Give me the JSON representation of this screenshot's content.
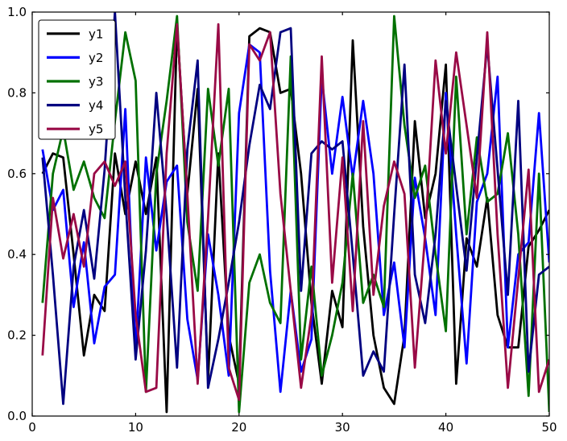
{
  "chart_data": {
    "type": "line",
    "title": "",
    "xlabel": "",
    "ylabel": "",
    "xlim": [
      0,
      50
    ],
    "ylim": [
      0.0,
      1.0
    ],
    "x_ticks": [
      0,
      10,
      20,
      30,
      40,
      50
    ],
    "y_ticks": [
      0.0,
      0.2,
      0.4,
      0.6,
      0.8,
      1.0
    ],
    "grid": false,
    "legend_position": "upper-left",
    "x_start": 1,
    "series": [
      {
        "name": "y1",
        "color": "#000000",
        "values": [
          0.6,
          0.65,
          0.64,
          0.4,
          0.15,
          0.3,
          0.26,
          0.65,
          0.5,
          0.63,
          0.5,
          0.64,
          0.01,
          0.97,
          0.55,
          0.81,
          0.09,
          0.65,
          0.2,
          0.08,
          0.94,
          0.96,
          0.95,
          0.8,
          0.81,
          0.6,
          0.28,
          0.08,
          0.31,
          0.22,
          0.93,
          0.47,
          0.2,
          0.07,
          0.03,
          0.2,
          0.73,
          0.49,
          0.6,
          0.87,
          0.08,
          0.44,
          0.37,
          0.54,
          0.25,
          0.17,
          0.17,
          0.42,
          0.46,
          0.51
        ]
      },
      {
        "name": "y2",
        "color": "#0000ff",
        "values": [
          0.66,
          0.51,
          0.56,
          0.27,
          0.43,
          0.18,
          0.32,
          0.35,
          0.76,
          0.16,
          0.64,
          0.41,
          0.58,
          0.62,
          0.24,
          0.09,
          0.45,
          0.3,
          0.1,
          0.75,
          0.92,
          0.9,
          0.36,
          0.06,
          0.31,
          0.11,
          0.19,
          0.84,
          0.6,
          0.79,
          0.59,
          0.78,
          0.6,
          0.25,
          0.38,
          0.17,
          0.59,
          0.44,
          0.25,
          0.8,
          0.45,
          0.13,
          0.53,
          0.6,
          0.84,
          0.17,
          0.4,
          0.43,
          0.75,
          0.38
        ]
      },
      {
        "name": "y3",
        "color": "#007000",
        "values": [
          0.28,
          0.6,
          0.71,
          0.56,
          0.63,
          0.54,
          0.49,
          0.73,
          0.95,
          0.83,
          0.06,
          0.6,
          0.78,
          0.99,
          0.48,
          0.31,
          0.81,
          0.62,
          0.81,
          0.01,
          0.33,
          0.4,
          0.28,
          0.23,
          0.89,
          0.14,
          0.37,
          0.1,
          0.2,
          0.33,
          0.6,
          0.28,
          0.35,
          0.27,
          0.99,
          0.72,
          0.54,
          0.62,
          0.4,
          0.21,
          0.84,
          0.45,
          0.69,
          0.53,
          0.55,
          0.7,
          0.45,
          0.05,
          0.6,
          0.01
        ]
      },
      {
        "name": "y4",
        "color": "#000080",
        "values": [
          0.64,
          0.35,
          0.03,
          0.37,
          0.51,
          0.34,
          0.61,
          1.0,
          0.54,
          0.14,
          0.41,
          0.8,
          0.5,
          0.12,
          0.66,
          0.88,
          0.07,
          0.19,
          0.33,
          0.48,
          0.67,
          0.82,
          0.76,
          0.95,
          0.96,
          0.31,
          0.65,
          0.68,
          0.66,
          0.68,
          0.4,
          0.1,
          0.16,
          0.11,
          0.5,
          0.87,
          0.35,
          0.23,
          0.45,
          0.78,
          0.57,
          0.36,
          0.64,
          0.92,
          0.61,
          0.3,
          0.78,
          0.11,
          0.35,
          0.37
        ]
      },
      {
        "name": "y5",
        "color": "#990a46",
        "values": [
          0.15,
          0.54,
          0.39,
          0.5,
          0.37,
          0.6,
          0.63,
          0.57,
          0.63,
          0.25,
          0.06,
          0.07,
          0.65,
          0.97,
          0.55,
          0.08,
          0.49,
          0.97,
          0.12,
          0.04,
          0.92,
          0.88,
          0.95,
          0.55,
          0.31,
          0.07,
          0.25,
          0.89,
          0.33,
          0.64,
          0.26,
          0.73,
          0.3,
          0.52,
          0.63,
          0.55,
          0.12,
          0.45,
          0.88,
          0.65,
          0.9,
          0.72,
          0.54,
          0.95,
          0.45,
          0.07,
          0.34,
          0.61,
          0.06,
          0.14
        ]
      }
    ]
  }
}
